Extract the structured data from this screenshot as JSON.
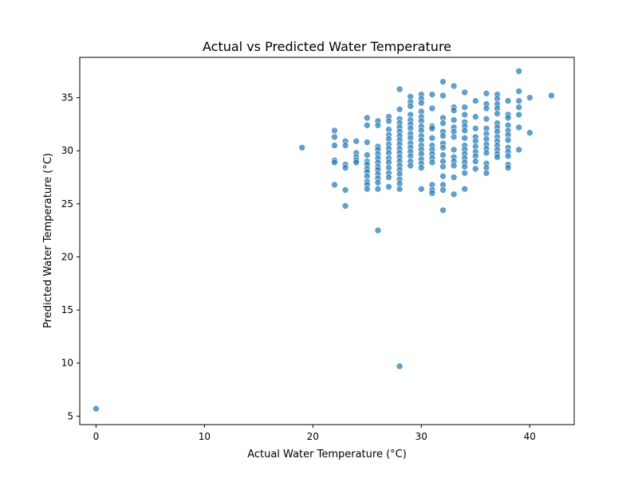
{
  "chart_data": {
    "type": "scatter",
    "title": "Actual vs Predicted Water Temperature",
    "xlabel": "Actual Water Temperature (°C)",
    "ylabel": "Predicted Water Temperature (°C)",
    "xlim": [
      -1.5,
      44.1
    ],
    "ylim": [
      4.2,
      38.8
    ],
    "xticks": [
      0,
      10,
      20,
      30,
      40
    ],
    "yticks": [
      5,
      10,
      15,
      20,
      25,
      30,
      35
    ],
    "grid": false,
    "legend": "none",
    "marker_color": "#1f77b4",
    "series": [
      {
        "points": [
          [
            0,
            5.7
          ],
          [
            19,
            30.3
          ],
          [
            26,
            22.5
          ],
          [
            28,
            9.7
          ],
          [
            42,
            35.2
          ],
          [
            40,
            35.0
          ],
          [
            40,
            31.7
          ],
          [
            22,
            31.9
          ],
          [
            22,
            31.3
          ],
          [
            22,
            30.5
          ],
          [
            22,
            29.1
          ],
          [
            22,
            28.9
          ],
          [
            22,
            26.8
          ],
          [
            23,
            30.9
          ],
          [
            23,
            30.5
          ],
          [
            23,
            28.7
          ],
          [
            23,
            28.4
          ],
          [
            23,
            26.3
          ],
          [
            23,
            24.8
          ],
          [
            24,
            30.9
          ],
          [
            24,
            29.8
          ],
          [
            24,
            29.4
          ],
          [
            24,
            29.1
          ],
          [
            24,
            28.9
          ],
          [
            25,
            33.1
          ],
          [
            25,
            32.4
          ],
          [
            25,
            30.8
          ],
          [
            25,
            29.6
          ],
          [
            25,
            29.0
          ],
          [
            25,
            28.7
          ],
          [
            25,
            28.3
          ],
          [
            25,
            28.0
          ],
          [
            25,
            27.6
          ],
          [
            25,
            27.1
          ],
          [
            25,
            26.8
          ],
          [
            25,
            26.4
          ],
          [
            26,
            32.8
          ],
          [
            26,
            32.4
          ],
          [
            26,
            30.4
          ],
          [
            26,
            30.1
          ],
          [
            26,
            29.7
          ],
          [
            26,
            29.3
          ],
          [
            26,
            28.9
          ],
          [
            26,
            28.5
          ],
          [
            26,
            28.2
          ],
          [
            26,
            27.8
          ],
          [
            26,
            27.4
          ],
          [
            26,
            27.0
          ],
          [
            26,
            26.4
          ],
          [
            27,
            33.2
          ],
          [
            27,
            32.8
          ],
          [
            27,
            32.0
          ],
          [
            27,
            31.5
          ],
          [
            27,
            31.1
          ],
          [
            27,
            30.6
          ],
          [
            27,
            30.2
          ],
          [
            27,
            29.8
          ],
          [
            27,
            29.3
          ],
          [
            27,
            28.9
          ],
          [
            27,
            28.4
          ],
          [
            27,
            27.9
          ],
          [
            27,
            27.5
          ],
          [
            27,
            26.6
          ],
          [
            28,
            35.8
          ],
          [
            28,
            33.9
          ],
          [
            28,
            33.0
          ],
          [
            28,
            32.6
          ],
          [
            28,
            32.2
          ],
          [
            28,
            31.8
          ],
          [
            28,
            31.4
          ],
          [
            28,
            31.0
          ],
          [
            28,
            30.6
          ],
          [
            28,
            30.2
          ],
          [
            28,
            29.8
          ],
          [
            28,
            29.4
          ],
          [
            28,
            29.0
          ],
          [
            28,
            28.6
          ],
          [
            28,
            28.2
          ],
          [
            28,
            27.8
          ],
          [
            28,
            27.3
          ],
          [
            28,
            26.9
          ],
          [
            28,
            26.4
          ],
          [
            29,
            35.1
          ],
          [
            29,
            34.6
          ],
          [
            29,
            34.2
          ],
          [
            29,
            33.4
          ],
          [
            29,
            32.9
          ],
          [
            29,
            32.5
          ],
          [
            29,
            32.1
          ],
          [
            29,
            31.6
          ],
          [
            29,
            31.2
          ],
          [
            29,
            30.7
          ],
          [
            29,
            30.3
          ],
          [
            29,
            29.9
          ],
          [
            29,
            29.5
          ],
          [
            29,
            29.0
          ],
          [
            29,
            28.6
          ],
          [
            30,
            35.3
          ],
          [
            30,
            34.9
          ],
          [
            30,
            34.5
          ],
          [
            30,
            33.7
          ],
          [
            30,
            33.2
          ],
          [
            30,
            32.8
          ],
          [
            30,
            32.3
          ],
          [
            30,
            31.9
          ],
          [
            30,
            31.4
          ],
          [
            30,
            31.0
          ],
          [
            30,
            30.5
          ],
          [
            30,
            30.1
          ],
          [
            30,
            29.7
          ],
          [
            30,
            29.2
          ],
          [
            30,
            28.8
          ],
          [
            30,
            28.4
          ],
          [
            30,
            26.4
          ],
          [
            31,
            35.3
          ],
          [
            31,
            34.0
          ],
          [
            31,
            32.3
          ],
          [
            31,
            32.1
          ],
          [
            31,
            31.2
          ],
          [
            31,
            30.5
          ],
          [
            31,
            30.1
          ],
          [
            31,
            29.7
          ],
          [
            31,
            29.3
          ],
          [
            31,
            28.9
          ],
          [
            31,
            26.8
          ],
          [
            31,
            26.3
          ],
          [
            31,
            26.0
          ],
          [
            32,
            36.5
          ],
          [
            32,
            35.2
          ],
          [
            32,
            33.1
          ],
          [
            32,
            32.6
          ],
          [
            32,
            31.8
          ],
          [
            32,
            31.4
          ],
          [
            32,
            30.7
          ],
          [
            32,
            30.3
          ],
          [
            32,
            29.6
          ],
          [
            32,
            29.0
          ],
          [
            32,
            28.5
          ],
          [
            32,
            27.6
          ],
          [
            32,
            26.8
          ],
          [
            32,
            26.3
          ],
          [
            32,
            24.4
          ],
          [
            33,
            36.1
          ],
          [
            33,
            34.1
          ],
          [
            33,
            33.8
          ],
          [
            33,
            32.9
          ],
          [
            33,
            32.2
          ],
          [
            33,
            31.8
          ],
          [
            33,
            31.3
          ],
          [
            33,
            30.1
          ],
          [
            33,
            29.4
          ],
          [
            33,
            29.0
          ],
          [
            33,
            28.6
          ],
          [
            33,
            27.5
          ],
          [
            33,
            25.9
          ],
          [
            34,
            35.5
          ],
          [
            34,
            34.1
          ],
          [
            34,
            33.4
          ],
          [
            34,
            32.7
          ],
          [
            34,
            32.3
          ],
          [
            34,
            31.9
          ],
          [
            34,
            31.2
          ],
          [
            34,
            30.5
          ],
          [
            34,
            30.1
          ],
          [
            34,
            29.7
          ],
          [
            34,
            29.3
          ],
          [
            34,
            28.9
          ],
          [
            34,
            28.5
          ],
          [
            34,
            27.9
          ],
          [
            34,
            26.4
          ],
          [
            35,
            34.7
          ],
          [
            35,
            33.2
          ],
          [
            35,
            32.1
          ],
          [
            35,
            31.3
          ],
          [
            35,
            30.9
          ],
          [
            35,
            30.4
          ],
          [
            35,
            29.9
          ],
          [
            35,
            29.5
          ],
          [
            35,
            29.0
          ],
          [
            35,
            28.3
          ],
          [
            36,
            35.4
          ],
          [
            36,
            34.4
          ],
          [
            36,
            34.0
          ],
          [
            36,
            33.0
          ],
          [
            36,
            32.1
          ],
          [
            36,
            31.6
          ],
          [
            36,
            31.1
          ],
          [
            36,
            30.6
          ],
          [
            36,
            30.2
          ],
          [
            36,
            29.8
          ],
          [
            36,
            28.8
          ],
          [
            36,
            28.4
          ],
          [
            36,
            27.9
          ],
          [
            37,
            35.3
          ],
          [
            37,
            34.9
          ],
          [
            37,
            34.4
          ],
          [
            37,
            34.0
          ],
          [
            37,
            33.5
          ],
          [
            37,
            32.6
          ],
          [
            37,
            32.2
          ],
          [
            37,
            31.8
          ],
          [
            37,
            31.3
          ],
          [
            37,
            30.9
          ],
          [
            37,
            30.5
          ],
          [
            37,
            30.1
          ],
          [
            37,
            29.7
          ],
          [
            37,
            29.4
          ],
          [
            38,
            34.7
          ],
          [
            38,
            33.4
          ],
          [
            38,
            33.1
          ],
          [
            38,
            32.4
          ],
          [
            38,
            31.9
          ],
          [
            38,
            31.5
          ],
          [
            38,
            31.0
          ],
          [
            38,
            30.3
          ],
          [
            38,
            29.9
          ],
          [
            38,
            29.5
          ],
          [
            38,
            28.7
          ],
          [
            38,
            28.4
          ],
          [
            39,
            37.5
          ],
          [
            39,
            35.6
          ],
          [
            39,
            34.7
          ],
          [
            39,
            34.1
          ],
          [
            39,
            33.4
          ],
          [
            39,
            32.2
          ],
          [
            39,
            30.1
          ]
        ]
      }
    ]
  }
}
